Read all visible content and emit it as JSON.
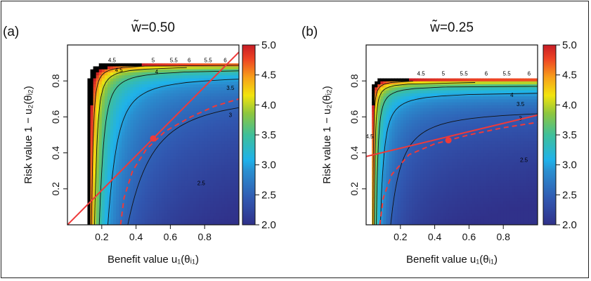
{
  "chart_data": [
    {
      "type": "heatmap",
      "panel_label": "(a)",
      "title": "w̃=0.50",
      "xlabel": "Benefit value   u₁(θᵢ₁)",
      "ylabel": "Risk value   1 − u₂(θᵢ₂)",
      "xlim": [
        0,
        1
      ],
      "ylim": [
        0,
        1
      ],
      "x_ticks": [
        "0.2",
        "0.4",
        "0.6",
        "0.8"
      ],
      "y_ticks": [
        "0.2",
        "0.4",
        "0.6",
        "0.8"
      ],
      "colorbar": {
        "range": [
          2.0,
          5.0
        ],
        "ticks": [
          "2.0",
          "2.5",
          "3.0",
          "3.5",
          "4.0",
          "4.5",
          "5.0"
        ]
      },
      "contour_levels": [
        {
          "label": "2.5"
        },
        {
          "label": "3"
        },
        {
          "label": "3.5"
        },
        {
          "label": "4"
        },
        {
          "label": "4.5"
        },
        {
          "label": "5"
        },
        {
          "label": "5.5"
        },
        {
          "label": "6"
        },
        {
          "label": "4.5"
        }
      ],
      "red_line": {
        "x": [
          0,
          1
        ],
        "y": [
          0,
          0.96
        ]
      },
      "red_dashed_curve": {
        "x": [
          0.31,
          0.33,
          0.38,
          0.46,
          0.57,
          0.72,
          0.86,
          1.0
        ],
        "y": [
          0.0,
          0.15,
          0.3,
          0.42,
          0.52,
          0.6,
          0.66,
          0.7
        ]
      },
      "marker": {
        "x": 0.5,
        "y": 0.48
      }
    },
    {
      "type": "heatmap",
      "panel_label": "(b)",
      "title": "w̃=0.25",
      "xlabel": "Benefit value   u₁(θᵢ₁)",
      "ylabel": "Risk value   1 − u₂(θᵢ₂)",
      "xlim": [
        0,
        1
      ],
      "ylim": [
        0,
        1
      ],
      "x_ticks": [
        "0.2",
        "0.4",
        "0.6",
        "0.8"
      ],
      "y_ticks": [
        "0.2",
        "0.4",
        "0.6",
        "0.8"
      ],
      "colorbar": {
        "range": [
          2.0,
          5.0
        ],
        "ticks": [
          "2.0",
          "2.5",
          "3.0",
          "3.5",
          "4.0",
          "4.5",
          "5.0"
        ]
      },
      "contour_levels": [
        {
          "label": "2.5"
        },
        {
          "label": "3"
        },
        {
          "label": "3.5"
        },
        {
          "label": "4"
        },
        {
          "label": "4.5"
        },
        {
          "label": "5"
        },
        {
          "label": "5.5"
        },
        {
          "label": "6"
        },
        {
          "label": "4.5"
        }
      ],
      "red_line": {
        "x": [
          0,
          1
        ],
        "y": [
          0.38,
          0.61
        ]
      },
      "red_dashed_curve": {
        "x": [
          0.08,
          0.1,
          0.15,
          0.25,
          0.4,
          0.6,
          0.8,
          1.0
        ],
        "y": [
          0.0,
          0.15,
          0.28,
          0.39,
          0.45,
          0.5,
          0.54,
          0.57
        ]
      },
      "marker": {
        "x": 0.48,
        "y": 0.47
      }
    }
  ]
}
